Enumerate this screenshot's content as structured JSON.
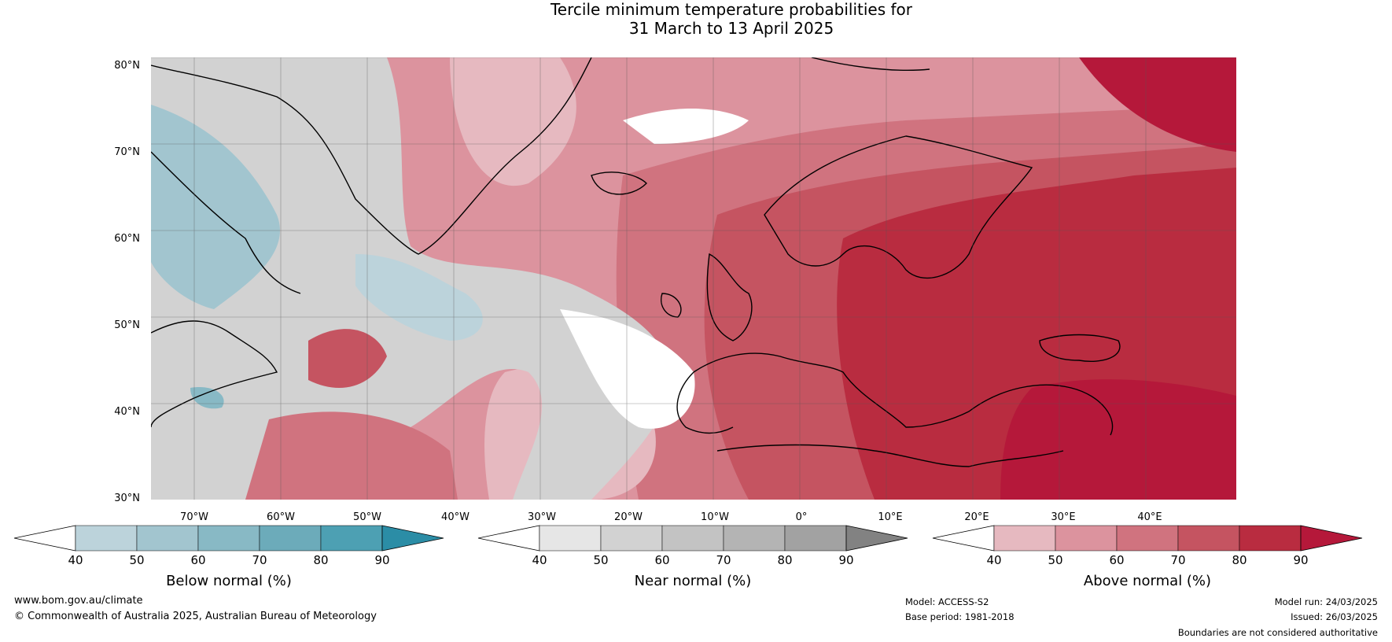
{
  "title_line1": "Tercile minimum temperature probabilities for",
  "title_line2": "31 March to 13 April 2025",
  "lat_labels": [
    "80°N",
    "70°N",
    "60°N",
    "50°N",
    "40°N",
    "30°N"
  ],
  "lon_labels": [
    "70°W",
    "60°W",
    "50°W",
    "40°W",
    "30°W",
    "20°W",
    "10°W",
    "0°",
    "10°E",
    "20°E",
    "30°E",
    "40°E"
  ],
  "colorbars": [
    {
      "caption": "Below normal (%)",
      "ticks": [
        "40",
        "50",
        "60",
        "70",
        "80",
        "90"
      ],
      "colors": [
        "#ffffff",
        "#bcd3db",
        "#a2c5cf",
        "#88b9c5",
        "#6cabba",
        "#4da0b3",
        "#2b8da6"
      ]
    },
    {
      "caption": "Near normal (%)",
      "ticks": [
        "40",
        "50",
        "60",
        "70",
        "80",
        "90"
      ],
      "colors": [
        "#ffffff",
        "#e6e6e6",
        "#d2d2d2",
        "#c3c3c3",
        "#b4b4b4",
        "#a2a2a2",
        "#828282"
      ]
    },
    {
      "caption": "Above normal (%)",
      "ticks": [
        "40",
        "50",
        "60",
        "70",
        "80",
        "90"
      ],
      "colors": [
        "#ffffff",
        "#e6b9c0",
        "#dc939e",
        "#d0737f",
        "#c55461",
        "#b92c40",
        "#b5183a"
      ]
    }
  ],
  "footer": {
    "website": "www.bom.gov.au/climate",
    "copyright": "© Commonwealth of Australia 2025, Australian Bureau of Meteorology",
    "model": "Model: ACCESS-S2",
    "base_period": "Base period: 1981-2018",
    "model_run": "Model run: 24/03/2025",
    "issued": "Issued: 26/03/2025",
    "disclaimer": "Boundaries are not considered authoritative"
  }
}
